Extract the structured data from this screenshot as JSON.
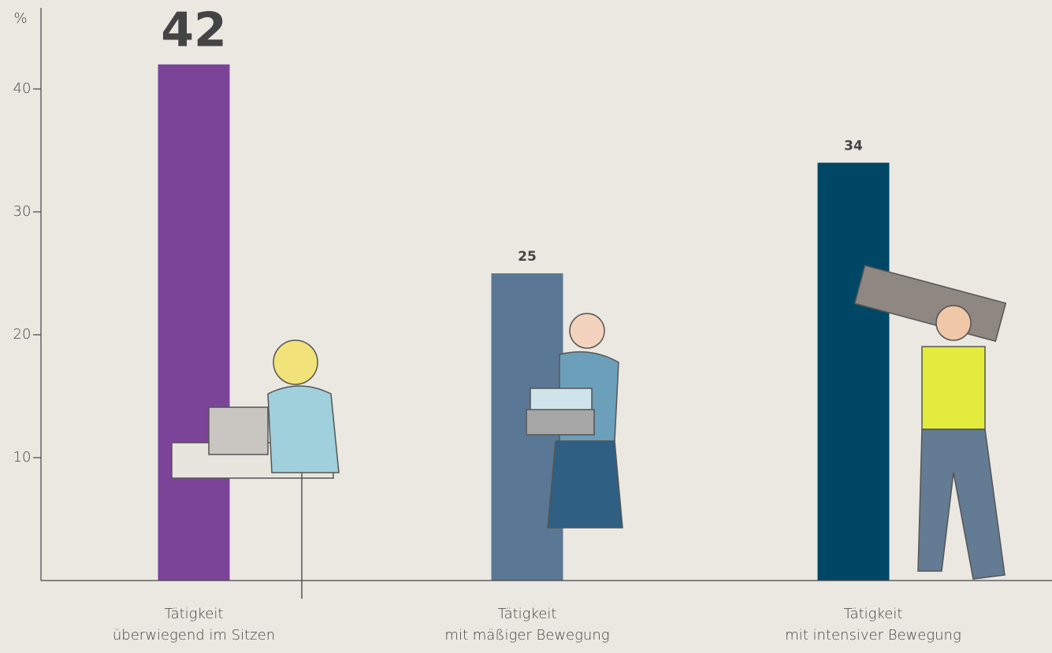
{
  "chart_data": {
    "type": "bar",
    "y_label": "%",
    "categories": [
      "Tätigkeit\nüberwiegend im Sitzen",
      "Tätigkeit\nmit mäßiger Bewegung",
      "Tätigkeit\nmit intensiver Bewegung"
    ],
    "values": [
      42,
      25,
      34
    ],
    "colors": [
      "#7b4499",
      "#5a7895",
      "#004766"
    ],
    "ylim": [
      0,
      46.6
    ],
    "yticks": [
      10,
      20,
      30,
      40
    ],
    "grid": false
  }
}
